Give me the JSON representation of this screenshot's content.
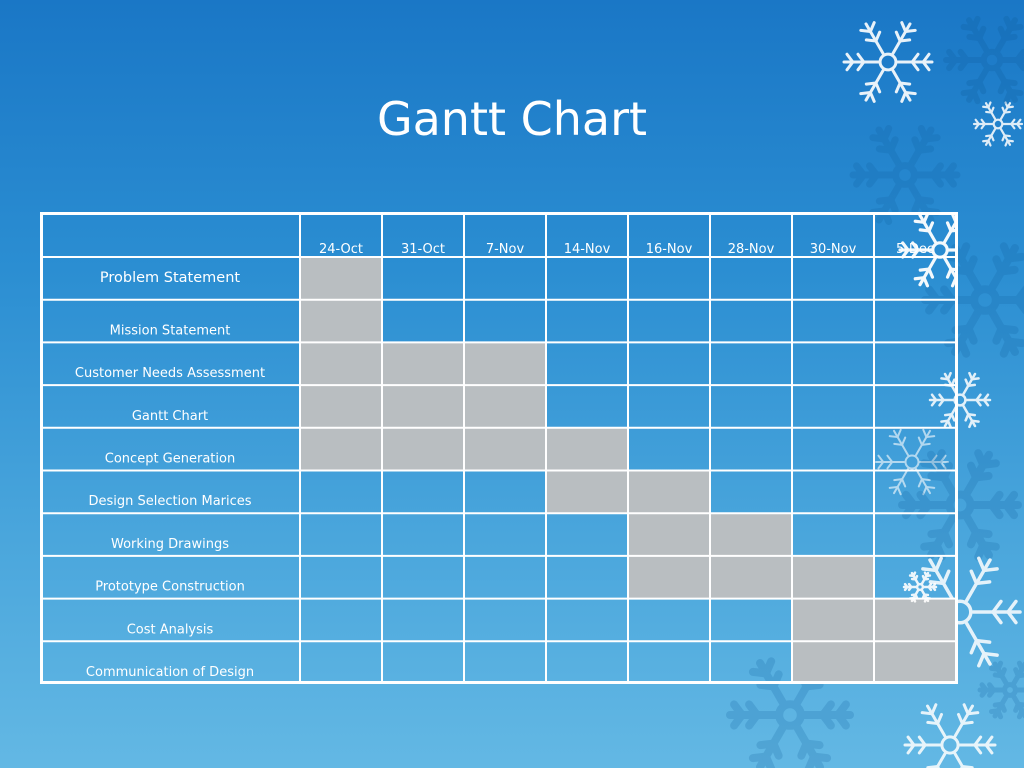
{
  "slide": {
    "title": "Gantt Chart"
  },
  "colors": {
    "background_top": "#1a77c6",
    "background_bottom": "#63b8e4",
    "grid_line": "#ffffff",
    "task_fill": "#b9bec1"
  },
  "chart_data": {
    "type": "table",
    "title": "Gantt Chart",
    "columns": [
      "24-Oct",
      "31-Oct",
      "7-Nov",
      "14-Nov",
      "16-Nov",
      "28-Nov",
      "30-Nov",
      "5-Dec"
    ],
    "tasks": [
      {
        "name": "Problem Statement",
        "start": 0,
        "end": 0
      },
      {
        "name": "Mission Statement",
        "start": 0,
        "end": 0
      },
      {
        "name": "Customer Needs Assessment",
        "start": 0,
        "end": 2
      },
      {
        "name": "Gantt Chart",
        "start": 0,
        "end": 2
      },
      {
        "name": "Concept Generation",
        "start": 0,
        "end": 3
      },
      {
        "name": "Design Selection Marices",
        "start": 3,
        "end": 4
      },
      {
        "name": "Working Drawings",
        "start": 4,
        "end": 5
      },
      {
        "name": "Prototype Construction",
        "start": 4,
        "end": 6
      },
      {
        "name": "Cost Analysis",
        "start": 6,
        "end": 7
      },
      {
        "name": "Communication of Design",
        "start": 6,
        "end": 7
      }
    ]
  }
}
